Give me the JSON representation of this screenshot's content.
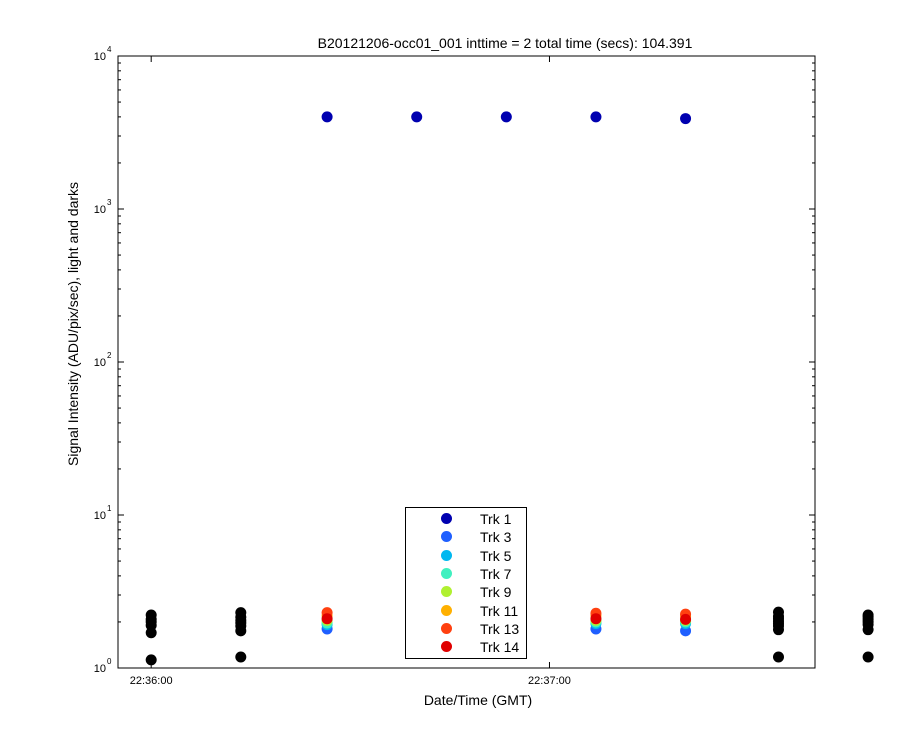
{
  "chart_data": {
    "type": "scatter",
    "title": "B20121206-occ01_001 inttime = 2 total time (secs): 104.391",
    "xlabel": "Date/Time (GMT)",
    "ylabel": "Signal Intensity (ADU/pix/sec), light and darks",
    "yscale": "log",
    "ylim": [
      1,
      10000
    ],
    "xlim_seconds_after_22_36_00": [
      -5,
      100
    ],
    "x_ticks": [
      {
        "label": "22:36:00",
        "seconds": 0
      },
      {
        "label": "22:37:00",
        "seconds": 60
      }
    ],
    "y_ticks": [
      {
        "base": "10",
        "exp": "0",
        "value": 1
      },
      {
        "base": "10",
        "exp": "1",
        "value": 10
      },
      {
        "base": "10",
        "exp": "2",
        "value": 100
      },
      {
        "base": "10",
        "exp": "3",
        "value": 1000
      },
      {
        "base": "10",
        "exp": "4",
        "value": 10000
      }
    ],
    "grid": false,
    "legend_position": "bottom-center",
    "series": [
      {
        "name": "Trk 1",
        "color": "#0000b0",
        "points": [
          [
            26.5,
            4000
          ],
          [
            40,
            4000
          ],
          [
            53.5,
            4000
          ],
          [
            67,
            4000
          ],
          [
            80.5,
            3900
          ]
        ]
      },
      {
        "name": "Trk 3",
        "color": "#1f5fff",
        "points": [
          [
            26.5,
            1.8
          ],
          [
            40,
            1.72
          ],
          [
            53.5,
            1.85
          ],
          [
            67,
            1.8
          ],
          [
            80.5,
            1.75
          ]
        ]
      },
      {
        "name": "Trk 5",
        "color": "#00b8f0",
        "points": [
          [
            26.5,
            1.92
          ],
          [
            40,
            1.88
          ],
          [
            53.5,
            1.95
          ],
          [
            67,
            1.95
          ],
          [
            80.5,
            1.95
          ]
        ]
      },
      {
        "name": "Trk 7",
        "color": "#40f0c0",
        "points": [
          [
            26.5,
            1.97
          ],
          [
            40,
            1.95
          ],
          [
            53.5,
            2.0
          ],
          [
            67,
            2.0
          ],
          [
            80.5,
            2.0
          ]
        ]
      },
      {
        "name": "Trk 9",
        "color": "#b0f030",
        "points": [
          [
            26.5,
            2.05
          ],
          [
            40,
            2.02
          ],
          [
            53.5,
            2.05
          ],
          [
            67,
            2.05
          ],
          [
            80.5,
            2.05
          ]
        ]
      },
      {
        "name": "Trk 11",
        "color": "#ffb000",
        "points": [
          [
            26.5,
            2.2
          ],
          [
            40,
            2.15
          ],
          [
            53.5,
            2.2
          ],
          [
            67,
            2.2
          ],
          [
            80.5,
            2.18
          ]
        ]
      },
      {
        "name": "Trk 13",
        "color": "#ff4010",
        "points": [
          [
            26.5,
            2.3
          ],
          [
            40,
            2.22
          ],
          [
            53.5,
            2.3
          ],
          [
            67,
            2.28
          ],
          [
            80.5,
            2.25
          ]
        ]
      },
      {
        "name": "Trk 14",
        "color": "#e00000",
        "points": [
          [
            26.5,
            2.1
          ],
          [
            40,
            2.08
          ],
          [
            53.5,
            2.12
          ],
          [
            67,
            2.1
          ],
          [
            80.5,
            2.08
          ]
        ]
      },
      {
        "name": "",
        "color": "#000000",
        "points": [
          [
            0,
            1.13
          ],
          [
            0,
            1.7
          ],
          [
            0,
            1.9
          ],
          [
            0,
            2.0
          ],
          [
            0,
            2.08
          ],
          [
            0,
            2.22
          ],
          [
            13.5,
            1.18
          ],
          [
            13.5,
            1.75
          ],
          [
            13.5,
            1.88
          ],
          [
            13.5,
            1.97
          ],
          [
            13.5,
            2.05
          ],
          [
            13.5,
            2.15
          ],
          [
            13.5,
            2.3
          ],
          [
            94.5,
            1.18
          ],
          [
            94.5,
            1.78
          ],
          [
            94.5,
            1.88
          ],
          [
            94.5,
            1.95
          ],
          [
            94.5,
            2.02
          ],
          [
            94.5,
            2.1
          ],
          [
            94.5,
            2.18
          ],
          [
            94.5,
            2.32
          ],
          [
            108,
            1.18
          ],
          [
            108,
            1.78
          ],
          [
            108,
            1.92
          ],
          [
            108,
            2.0
          ],
          [
            108,
            2.08
          ],
          [
            108,
            2.16
          ],
          [
            108,
            2.22
          ]
        ]
      }
    ]
  }
}
